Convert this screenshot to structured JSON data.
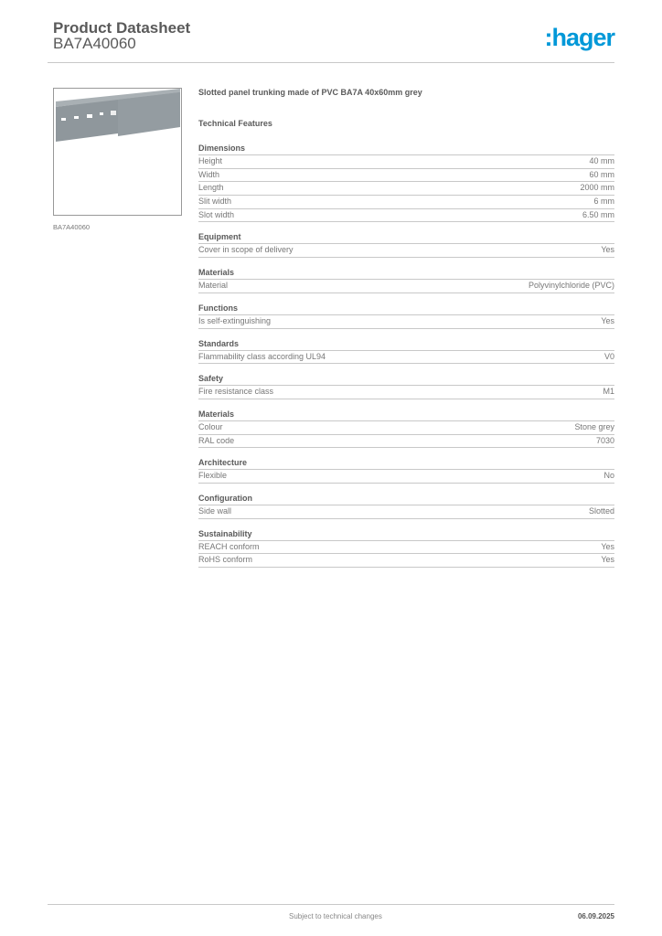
{
  "header": {
    "title": "Product Datasheet",
    "code": "BA7A40060",
    "logo": ":hager",
    "logo_color": "#0098d8"
  },
  "product": {
    "image_caption": "BA7A40060",
    "description": "Slotted panel trunking made of PVC BA7A 40x60mm grey",
    "features_title": "Technical Features"
  },
  "sections": [
    {
      "title": "Dimensions",
      "rows": [
        [
          "Height",
          "40 mm"
        ],
        [
          "Width",
          "60 mm"
        ],
        [
          "Length",
          "2000 mm"
        ],
        [
          "Slit width",
          "6 mm"
        ],
        [
          "Slot width",
          "6.50 mm"
        ]
      ]
    },
    {
      "title": "Equipment",
      "rows": [
        [
          "Cover in scope of delivery",
          "Yes"
        ]
      ]
    },
    {
      "title": "Materials",
      "rows": [
        [
          "Material",
          "Polyvinylchloride (PVC)"
        ]
      ]
    },
    {
      "title": "Functions",
      "rows": [
        [
          "Is self-extinguishing",
          "Yes"
        ]
      ]
    },
    {
      "title": "Standards",
      "rows": [
        [
          "Flammability class according UL94",
          "V0"
        ]
      ]
    },
    {
      "title": "Safety",
      "rows": [
        [
          "Fire resistance class",
          "M1"
        ]
      ]
    },
    {
      "title": "Materials",
      "rows": [
        [
          "Colour",
          "Stone grey"
        ],
        [
          "RAL code",
          "7030"
        ]
      ]
    },
    {
      "title": "Architecture",
      "rows": [
        [
          "Flexible",
          "No"
        ]
      ]
    },
    {
      "title": "Configuration",
      "rows": [
        [
          "Side wall",
          "Slotted"
        ]
      ]
    },
    {
      "title": "Sustainability",
      "rows": [
        [
          "REACH conform",
          "Yes"
        ],
        [
          "RoHS conform",
          "Yes"
        ]
      ]
    }
  ],
  "footer": {
    "note": "Subject to technical changes",
    "date": "06.09.2025"
  }
}
